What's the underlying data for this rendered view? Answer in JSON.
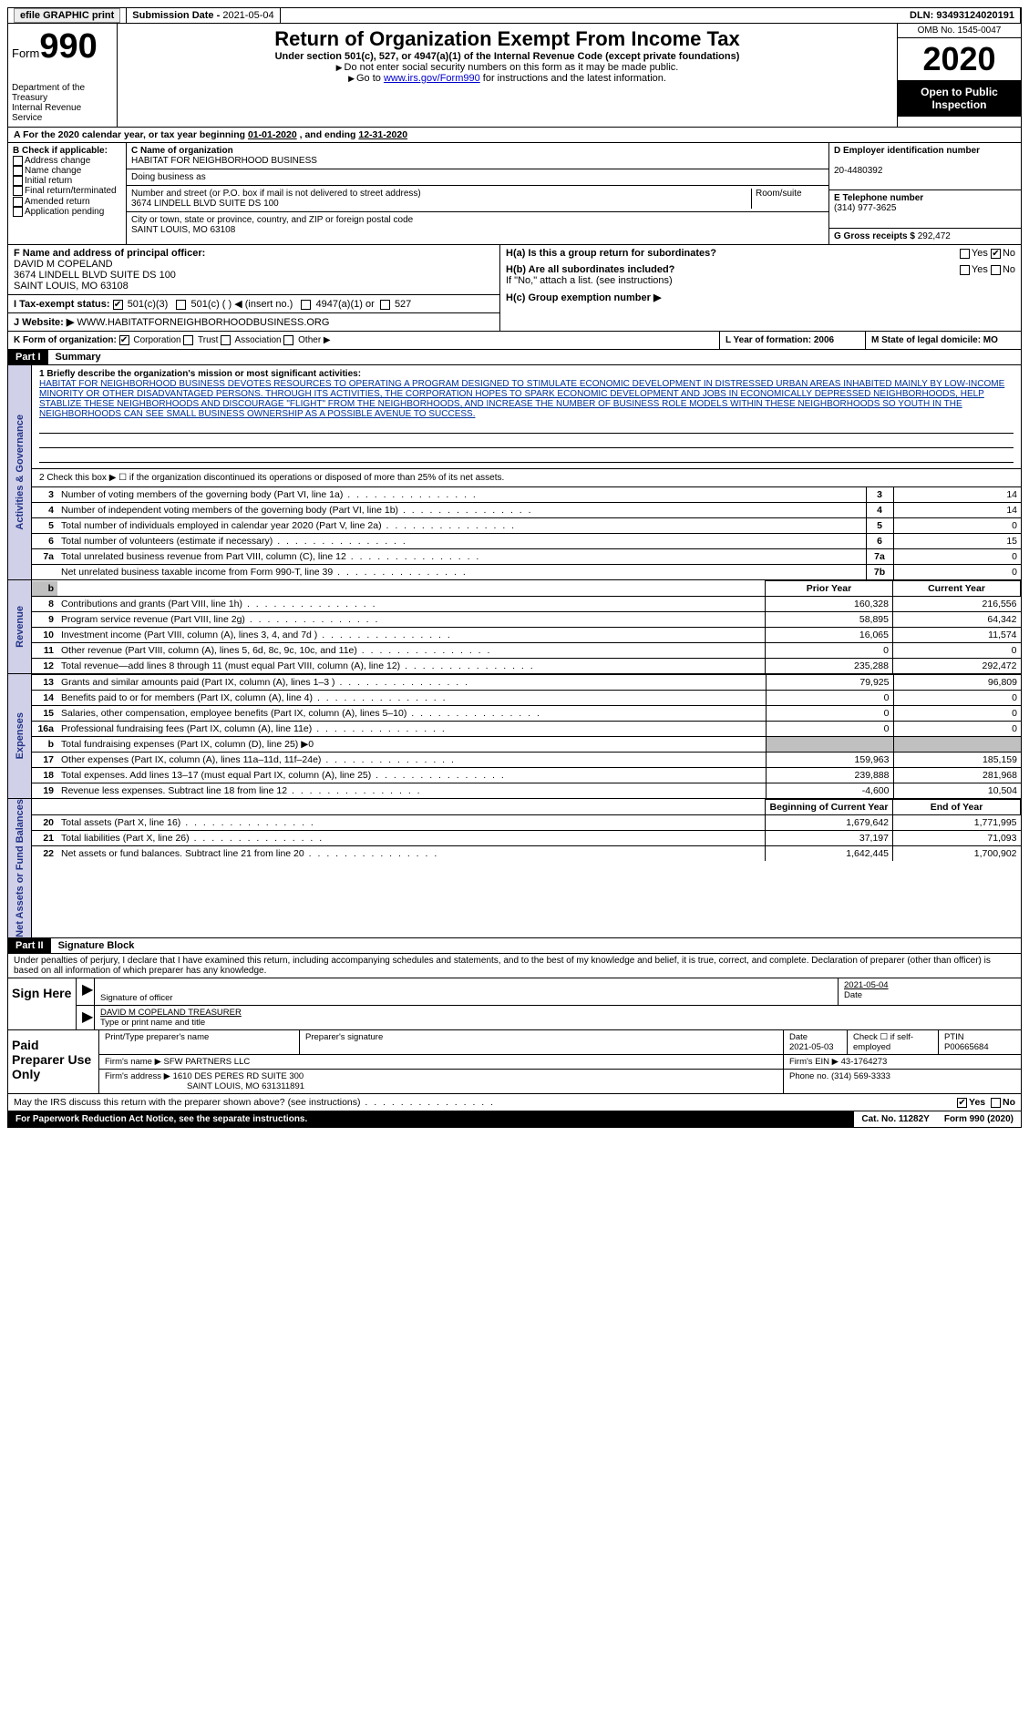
{
  "topbar": {
    "efile": "efile GRAPHIC print",
    "subdate_lbl": "Submission Date - ",
    "subdate": "2021-05-04",
    "dln_lbl": "DLN: ",
    "dln": "93493124020191"
  },
  "hdr": {
    "form_word": "Form",
    "form_num": "990",
    "dept": "Department of the Treasury\nInternal Revenue Service",
    "title": "Return of Organization Exempt From Income Tax",
    "sub1": "Under section 501(c), 527, or 4947(a)(1) of the Internal Revenue Code (except private foundations)",
    "sub2": "Do not enter social security numbers on this form as it may be made public.",
    "sub3_pre": "Go to ",
    "sub3_link": "www.irs.gov/Form990",
    "sub3_post": " for instructions and the latest information.",
    "omb": "OMB No. 1545-0047",
    "year": "2020",
    "pub": "Open to Public Inspection"
  },
  "rowA": {
    "pre": "A For the 2020 calendar year, or tax year beginning ",
    "begin": "01-01-2020",
    "mid": "  , and ending ",
    "end": "12-31-2020"
  },
  "B": {
    "hdr": "B Check if applicable:",
    "items": [
      "Address change",
      "Name change",
      "Initial return",
      "Final return/terminated",
      "Amended return",
      "Application pending"
    ]
  },
  "C": {
    "name_lbl": "C Name of organization",
    "name": "HABITAT FOR NEIGHBORHOOD BUSINESS",
    "dba_lbl": "Doing business as",
    "street_lbl": "Number and street (or P.O. box if mail is not delivered to street address)",
    "street": "3674 LINDELL BLVD SUITE DS 100",
    "room_lbl": "Room/suite",
    "city_lbl": "City or town, state or province, country, and ZIP or foreign postal code",
    "city": "SAINT LOUIS, MO  63108"
  },
  "D": {
    "lbl": "D Employer identification number",
    "val": "20-4480392"
  },
  "E": {
    "lbl": "E Telephone number",
    "val": "(314) 977-3625"
  },
  "G": {
    "lbl": "G Gross receipts $",
    "val": "292,472"
  },
  "F": {
    "lbl": "F  Name and address of principal officer:",
    "name": "DAVID M COPELAND",
    "addr1": "3674 LINDELL BLVD SUITE DS 100",
    "addr2": "SAINT LOUIS, MO  63108"
  },
  "I": {
    "lbl": "I  Tax-exempt status:",
    "o1": "501(c)(3)",
    "o2": "501(c) (   ) ◀ (insert no.)",
    "o3": "4947(a)(1) or",
    "o4": "527"
  },
  "J": {
    "lbl": "J  Website: ▶",
    "val": "WWW.HABITATFORNEIGHBORHOODBUSINESS.ORG"
  },
  "H": {
    "a": "H(a)  Is this a group return for subordinates?",
    "b": "H(b)  Are all subordinates included?",
    "bnote": "If \"No,\" attach a list. (see instructions)",
    "c": "H(c)  Group exemption number ▶",
    "yes": "Yes",
    "no": "No"
  },
  "K": {
    "lbl": "K Form of organization:",
    "opts": [
      "Corporation",
      "Trust",
      "Association",
      "Other ▶"
    ],
    "L": "L Year of formation: 2006",
    "M": "M State of legal domicile: MO"
  },
  "part1": {
    "pt": "Part I",
    "ti": "Summary"
  },
  "side_labels": [
    "Activities & Governance",
    "Revenue",
    "Expenses",
    "Net Assets or Fund Balances"
  ],
  "mission": {
    "lbl": "1   Briefly describe the organization's mission or most significant activities:",
    "txt": "HABITAT FOR NEIGHBORHOOD BUSINESS DEVOTES RESOURCES TO OPERATING A PROGRAM DESIGNED TO STIMULATE ECONOMIC DEVELOPMENT IN DISTRESSED URBAN AREAS INHABITED MAINLY BY LOW-INCOME MINORITY OR OTHER DISADVANTAGED PERSONS. THROUGH ITS ACTIVITIES, THE CORPORATION HOPES TO SPARK ECONOMIC DEVELOPMENT AND JOBS IN ECONOMICALLY DEPRESSED NEIGHBORHOODS, HELP STABLIZE THESE NEIGHBORHOODS AND DISCOURAGE \"FLIGHT\" FROM THE NEIGHBORHOODS, AND INCREASE THE NUMBER OF BUSINESS ROLE MODELS WITHIN THESE NEIGHBORHOODS SO YOUTH IN THE NEIGHBORHOODS CAN SEE SMALL BUSINESS OWNERSHIP AS A POSSIBLE AVENUE TO SUCCESS."
  },
  "line2": "2   Check this box ▶ ☐ if the organization discontinued its operations or disposed of more than 25% of its net assets.",
  "gov_rows": [
    {
      "n": "3",
      "t": "Number of voting members of the governing body (Part VI, line 1a)",
      "box": "3",
      "v": "14"
    },
    {
      "n": "4",
      "t": "Number of independent voting members of the governing body (Part VI, line 1b)",
      "box": "4",
      "v": "14"
    },
    {
      "n": "5",
      "t": "Total number of individuals employed in calendar year 2020 (Part V, line 2a)",
      "box": "5",
      "v": "0"
    },
    {
      "n": "6",
      "t": "Total number of volunteers (estimate if necessary)",
      "box": "6",
      "v": "15"
    },
    {
      "n": "7a",
      "t": "Total unrelated business revenue from Part VIII, column (C), line 12",
      "box": "7a",
      "v": "0"
    },
    {
      "n": "",
      "t": "Net unrelated business taxable income from Form 990-T, line 39",
      "box": "7b",
      "v": "0"
    }
  ],
  "col_hdrs": {
    "prior": "Prior Year",
    "curr": "Current Year",
    "boy": "Beginning of Current Year",
    "eoy": "End of Year"
  },
  "rev_rows": [
    {
      "n": "8",
      "t": "Contributions and grants (Part VIII, line 1h)",
      "p": "160,328",
      "c": "216,556"
    },
    {
      "n": "9",
      "t": "Program service revenue (Part VIII, line 2g)",
      "p": "58,895",
      "c": "64,342"
    },
    {
      "n": "10",
      "t": "Investment income (Part VIII, column (A), lines 3, 4, and 7d )",
      "p": "16,065",
      "c": "11,574"
    },
    {
      "n": "11",
      "t": "Other revenue (Part VIII, column (A), lines 5, 6d, 8c, 9c, 10c, and 11e)",
      "p": "0",
      "c": "0"
    },
    {
      "n": "12",
      "t": "Total revenue—add lines 8 through 11 (must equal Part VIII, column (A), line 12)",
      "p": "235,288",
      "c": "292,472"
    }
  ],
  "exp_rows": [
    {
      "n": "13",
      "t": "Grants and similar amounts paid (Part IX, column (A), lines 1–3 )",
      "p": "79,925",
      "c": "96,809"
    },
    {
      "n": "14",
      "t": "Benefits paid to or for members (Part IX, column (A), line 4)",
      "p": "0",
      "c": "0"
    },
    {
      "n": "15",
      "t": "Salaries, other compensation, employee benefits (Part IX, column (A), lines 5–10)",
      "p": "0",
      "c": "0"
    },
    {
      "n": "16a",
      "t": "Professional fundraising fees (Part IX, column (A), line 11e)",
      "p": "0",
      "c": "0"
    },
    {
      "n": "b",
      "t": "Total fundraising expenses (Part IX, column (D), line 25) ▶0",
      "p": "",
      "c": "",
      "grey": true
    },
    {
      "n": "17",
      "t": "Other expenses (Part IX, column (A), lines 11a–11d, 11f–24e)",
      "p": "159,963",
      "c": "185,159"
    },
    {
      "n": "18",
      "t": "Total expenses. Add lines 13–17 (must equal Part IX, column (A), line 25)",
      "p": "239,888",
      "c": "281,968"
    },
    {
      "n": "19",
      "t": "Revenue less expenses. Subtract line 18 from line 12",
      "p": "-4,600",
      "c": "10,504"
    }
  ],
  "na_rows": [
    {
      "n": "20",
      "t": "Total assets (Part X, line 16)",
      "p": "1,679,642",
      "c": "1,771,995"
    },
    {
      "n": "21",
      "t": "Total liabilities (Part X, line 26)",
      "p": "37,197",
      "c": "71,093"
    },
    {
      "n": "22",
      "t": "Net assets or fund balances. Subtract line 21 from line 20",
      "p": "1,642,445",
      "c": "1,700,902"
    }
  ],
  "part2": {
    "pt": "Part II",
    "ti": "Signature Block"
  },
  "perjury": "Under penalties of perjury, I declare that I have examined this return, including accompanying schedules and statements, and to the best of my knowledge and belief, it is true, correct, and complete. Declaration of preparer (other than officer) is based on all information of which preparer has any knowledge.",
  "sign": {
    "here": "Sign Here",
    "sig_lbl": "Signature of officer",
    "date_lbl": "Date",
    "date": "2021-05-04",
    "name": "DAVID M COPELAND  TREASURER",
    "name_lbl": "Type or print name and title"
  },
  "paid": {
    "hdr": "Paid Preparer Use Only",
    "c1": "Print/Type preparer's name",
    "c2": "Preparer's signature",
    "c3_lbl": "Date",
    "c3": "2021-05-03",
    "c4": "Check ☐ if self-employed",
    "c5_lbl": "PTIN",
    "c5": "P00665684",
    "firm_lbl": "Firm's name    ▶",
    "firm": "SFW PARTNERS LLC",
    "ein_lbl": "Firm's EIN ▶",
    "ein": "43-1764273",
    "addr_lbl": "Firm's address ▶",
    "addr1": "1610 DES PERES RD SUITE 300",
    "addr2": "SAINT LOUIS, MO  631311891",
    "phone_lbl": "Phone no.",
    "phone": "(314) 569-3333"
  },
  "discuss": {
    "q": "May the IRS discuss this return with the preparer shown above? (see instructions)",
    "yes": "Yes",
    "no": "No"
  },
  "footer": {
    "l": "For Paperwork Reduction Act Notice, see the separate instructions.",
    "c": "Cat. No. 11282Y",
    "r": "Form 990 (2020)"
  }
}
